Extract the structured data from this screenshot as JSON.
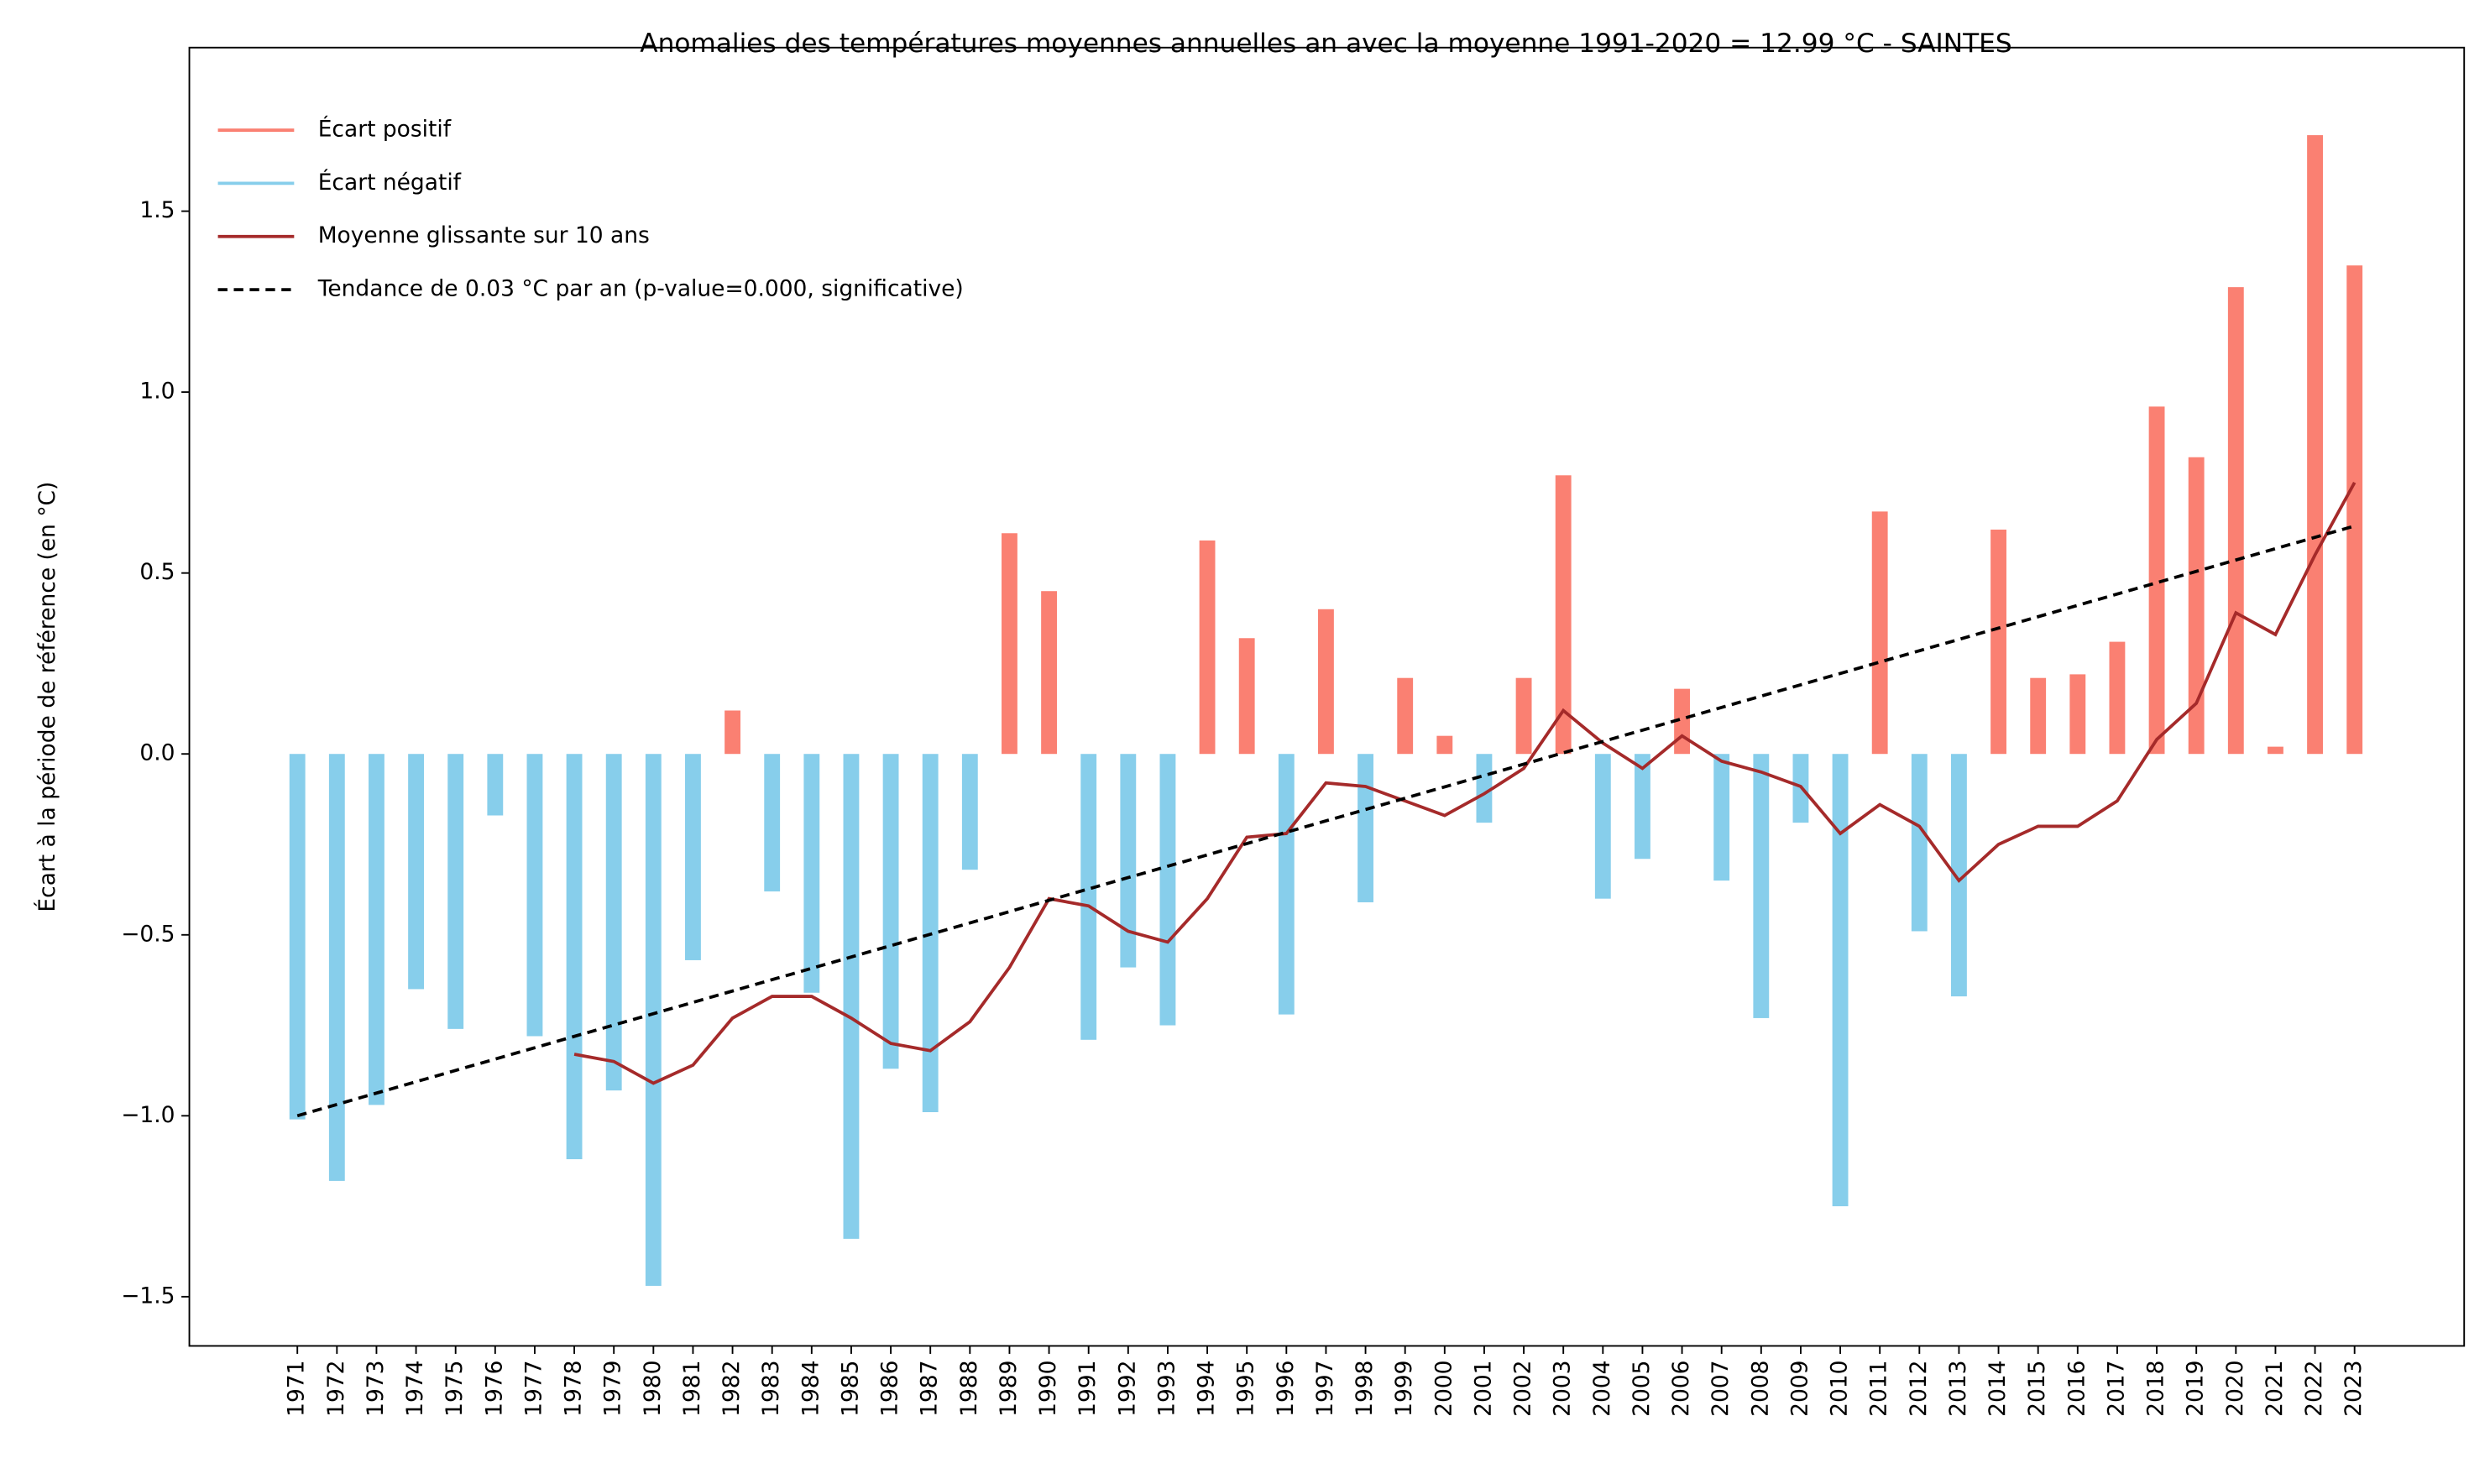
{
  "chart_data": {
    "type": "bar",
    "title": "Anomalies des températures moyennes annuelles an avec la moyenne 1991-2020 = 12.99 °C - SAINTES",
    "y_label": "Écart à la période de référence (en °C)",
    "x": [
      1971,
      1972,
      1973,
      1974,
      1975,
      1976,
      1977,
      1978,
      1979,
      1980,
      1981,
      1982,
      1983,
      1984,
      1985,
      1986,
      1987,
      1988,
      1989,
      1990,
      1991,
      1992,
      1993,
      1994,
      1995,
      1996,
      1997,
      1998,
      1999,
      2000,
      2001,
      2002,
      2003,
      2004,
      2005,
      2006,
      2007,
      2008,
      2009,
      2010,
      2011,
      2012,
      2013,
      2014,
      2015,
      2016,
      2017,
      2018,
      2019,
      2020,
      2021,
      2022,
      2023
    ],
    "xlim": [
      1968.27,
      2025.77
    ],
    "ylim": [
      -1.636,
      1.952
    ],
    "yticks": [
      {
        "value": -1.5,
        "label": "−1.5"
      },
      {
        "value": -1.0,
        "label": "−1.0"
      },
      {
        "value": -0.5,
        "label": "−0.5"
      },
      {
        "value": 0,
        "label": "0.0"
      },
      0.5,
      {
        "value": 1.0,
        "label": "1.0"
      },
      1.5
    ],
    "grid": false,
    "legend": "upper left",
    "series": [
      {
        "name": "Écart positif",
        "kind": "bar",
        "color": "#fa8072",
        "values": [
          null,
          null,
          null,
          null,
          null,
          null,
          null,
          null,
          null,
          null,
          null,
          0.12,
          null,
          null,
          null,
          null,
          null,
          null,
          0.61,
          0.45,
          null,
          null,
          null,
          0.59,
          0.32,
          null,
          0.4,
          null,
          0.21,
          0.05,
          null,
          0.21,
          0.77,
          null,
          null,
          0.18,
          null,
          null,
          null,
          null,
          0.67,
          null,
          null,
          0.62,
          0.21,
          0.22,
          0.31,
          0.96,
          0.82,
          1.29,
          0.02,
          1.71,
          1.35
        ]
      },
      {
        "name": "Écart négatif",
        "kind": "bar",
        "color": "#87ceeb",
        "values": [
          -1.01,
          -1.18,
          -0.97,
          -0.65,
          -0.76,
          -0.17,
          -0.78,
          -1.12,
          -0.93,
          -1.47,
          -0.57,
          null,
          -0.38,
          -0.66,
          -1.34,
          -0.87,
          -0.99,
          -0.32,
          null,
          null,
          -0.79,
          -0.59,
          -0.75,
          null,
          null,
          -0.72,
          null,
          -0.41,
          null,
          null,
          -0.19,
          null,
          null,
          -0.4,
          -0.29,
          null,
          -0.35,
          -0.73,
          -0.19,
          -1.25,
          null,
          -0.49,
          -0.67,
          null,
          null,
          null,
          null,
          null,
          null,
          null,
          null,
          null,
          null
        ]
      },
      {
        "name": "Moyenne glissante sur 10 ans",
        "kind": "line",
        "color": "#a52a2a",
        "values": [
          null,
          null,
          null,
          null,
          null,
          null,
          null,
          -0.83,
          -0.85,
          -0.91,
          -0.86,
          -0.73,
          -0.67,
          -0.67,
          -0.73,
          -0.8,
          -0.82,
          -0.74,
          -0.59,
          -0.4,
          -0.42,
          -0.49,
          -0.52,
          -0.4,
          -0.23,
          -0.22,
          -0.08,
          -0.09,
          -0.13,
          -0.17,
          -0.11,
          -0.04,
          0.12,
          0.03,
          -0.04,
          0.05,
          -0.02,
          -0.05,
          -0.09,
          -0.22,
          -0.14,
          -0.2,
          -0.35,
          -0.25,
          -0.2,
          -0.2,
          -0.13,
          0.04,
          0.14,
          0.39,
          0.33,
          0.55,
          0.75
        ]
      },
      {
        "name": "Tendance de 0.03 °C par an (p-value=0.000, significative)",
        "kind": "dashed",
        "color": "#000000",
        "x": [
          1971,
          2023
        ],
        "values": [
          -1.0,
          0.63
        ]
      }
    ]
  }
}
